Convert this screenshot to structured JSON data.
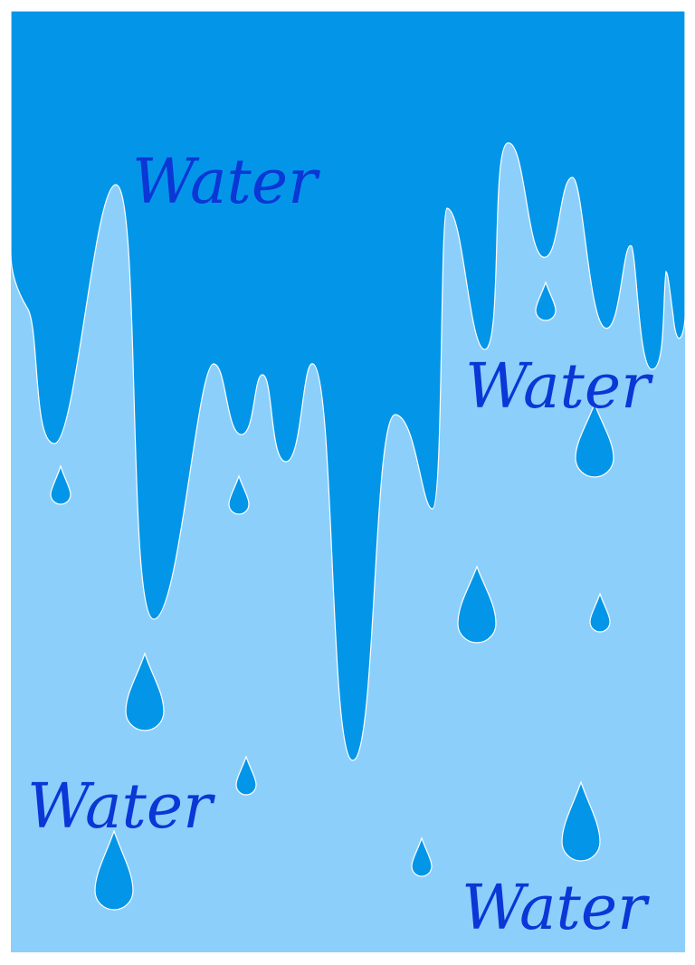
{
  "labels": [
    "Water",
    "Water",
    "Water",
    "Water"
  ],
  "colors": {
    "background": "#ffffff",
    "light_water": "#8dcffb",
    "dark_water": "#0396e8",
    "outline": "#ffffff",
    "text": "#0a37d6"
  }
}
